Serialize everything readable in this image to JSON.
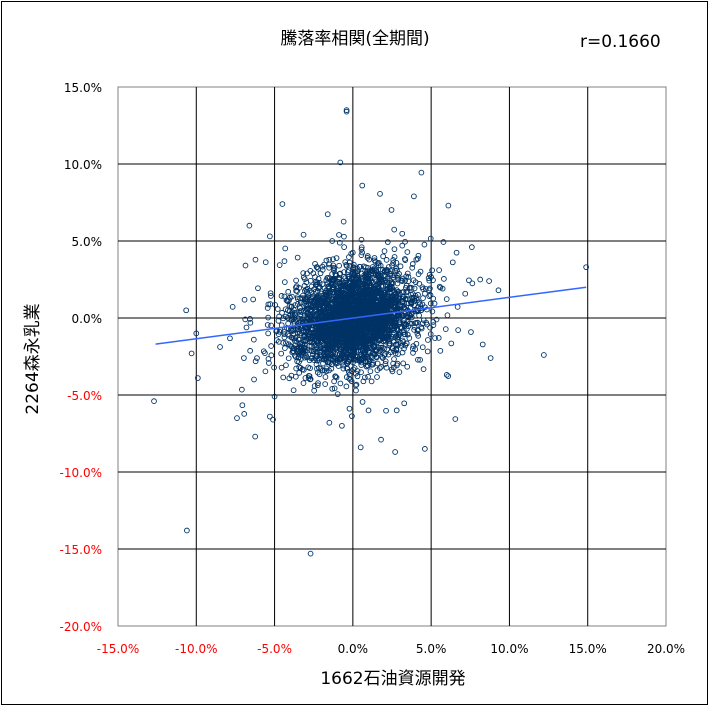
{
  "chart_data": {
    "type": "scatter",
    "title": "騰落率相関(全期間)",
    "annotation": "r=0.1660",
    "xlabel": "1662石油資源開発",
    "ylabel": "2264森永乳業",
    "xlim": [
      -15.0,
      20.0
    ],
    "ylim": [
      -20.0,
      15.0
    ],
    "x_ticks": [
      -15,
      -10,
      -5,
      0,
      5,
      10,
      15,
      20
    ],
    "y_ticks": [
      15,
      10,
      5,
      0,
      -5,
      -10,
      -15,
      -20
    ],
    "x_tick_labels": [
      "-15.0%",
      "-10.0%",
      "-5.0%",
      "0.0%",
      "5.0%",
      "10.0%",
      "15.0%",
      "20.0%"
    ],
    "y_tick_labels": [
      "15.0%",
      "10.0%",
      "5.0%",
      "0.0%",
      "-5.0%",
      "-10.0%",
      "-15.0%",
      "-20.0%"
    ],
    "grid": true,
    "negative_tick_color": "#ff0000",
    "positive_tick_color": "#000000",
    "marker_color": "#003366",
    "trendline_color": "#3366ff",
    "trendline": {
      "x": [
        -12.6,
        14.9
      ],
      "y": [
        -1.7,
        2.0
      ]
    },
    "outliers": [
      {
        "x": -0.4,
        "y": 13.5
      },
      {
        "x": -0.4,
        "y": 13.4
      },
      {
        "x": -0.8,
        "y": 10.1
      },
      {
        "x": 0.6,
        "y": 8.6
      },
      {
        "x": 3.9,
        "y": 7.9
      },
      {
        "x": -4.5,
        "y": 7.4
      },
      {
        "x": 6.1,
        "y": 7.3
      },
      {
        "x": 14.9,
        "y": 3.3
      },
      {
        "x": 7.6,
        "y": 4.6
      },
      {
        "x": -5.3,
        "y": 5.3
      },
      {
        "x": 8.7,
        "y": 2.4
      },
      {
        "x": 9.3,
        "y": 1.8
      },
      {
        "x": 12.2,
        "y": -2.4
      },
      {
        "x": 8.8,
        "y": -2.6
      },
      {
        "x": -12.7,
        "y": -5.4
      },
      {
        "x": -10.6,
        "y": -13.8
      },
      {
        "x": -2.7,
        "y": -15.3
      },
      {
        "x": -7.4,
        "y": -6.5
      },
      {
        "x": -5.3,
        "y": -6.4
      },
      {
        "x": -5.1,
        "y": -6.6
      },
      {
        "x": -9.9,
        "y": -3.9
      },
      {
        "x": -10.3,
        "y": -2.3
      },
      {
        "x": -10.0,
        "y": -1.0
      },
      {
        "x": 1.8,
        "y": -7.9
      },
      {
        "x": 2.7,
        "y": -8.7
      },
      {
        "x": 4.6,
        "y": -8.5
      },
      {
        "x": 0.5,
        "y": -8.4
      },
      {
        "x": -1.5,
        "y": -6.8
      },
      {
        "x": 2.8,
        "y": -6.0
      },
      {
        "x": -5.0,
        "y": -5.1
      },
      {
        "x": -0.7,
        "y": -7.0
      },
      {
        "x": 1.0,
        "y": -6.0
      }
    ],
    "cloud": {
      "count": 3300,
      "x_mean": 0.0,
      "y_mean": 0.0,
      "x_sd": 1.9,
      "y_sd": 1.55,
      "slope": 0.135,
      "seed": 1660,
      "xlim_clip": [
        -13,
        15
      ],
      "ylim_clip": [
        -16,
        14
      ]
    }
  }
}
